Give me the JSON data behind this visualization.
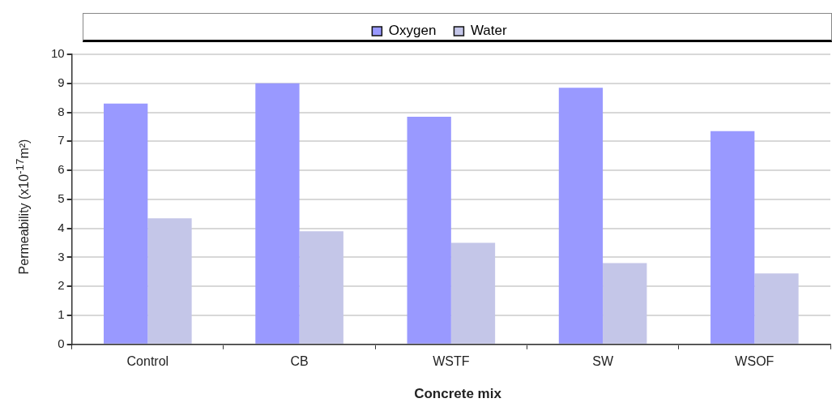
{
  "chart_data": {
    "type": "bar",
    "xlabel": "Concrete mix",
    "ylabel": "Permeability (x10$^{-17}$m²)",
    "categories": [
      "Control",
      "CB",
      "WSTF",
      "SW",
      "WSOF"
    ],
    "series": [
      {
        "name": "Oxygen",
        "color": "#9999ff",
        "values": [
          8.3,
          9.0,
          7.85,
          8.85,
          7.35
        ]
      },
      {
        "name": "Water",
        "color": "#c4c6e8",
        "values": [
          4.35,
          3.9,
          3.5,
          2.8,
          2.45
        ]
      }
    ],
    "ylim": [
      0,
      10
    ],
    "yticks": [
      0,
      1,
      2,
      3,
      4,
      5,
      6,
      7,
      8,
      9,
      10
    ],
    "grid": "y",
    "legend": "top"
  }
}
